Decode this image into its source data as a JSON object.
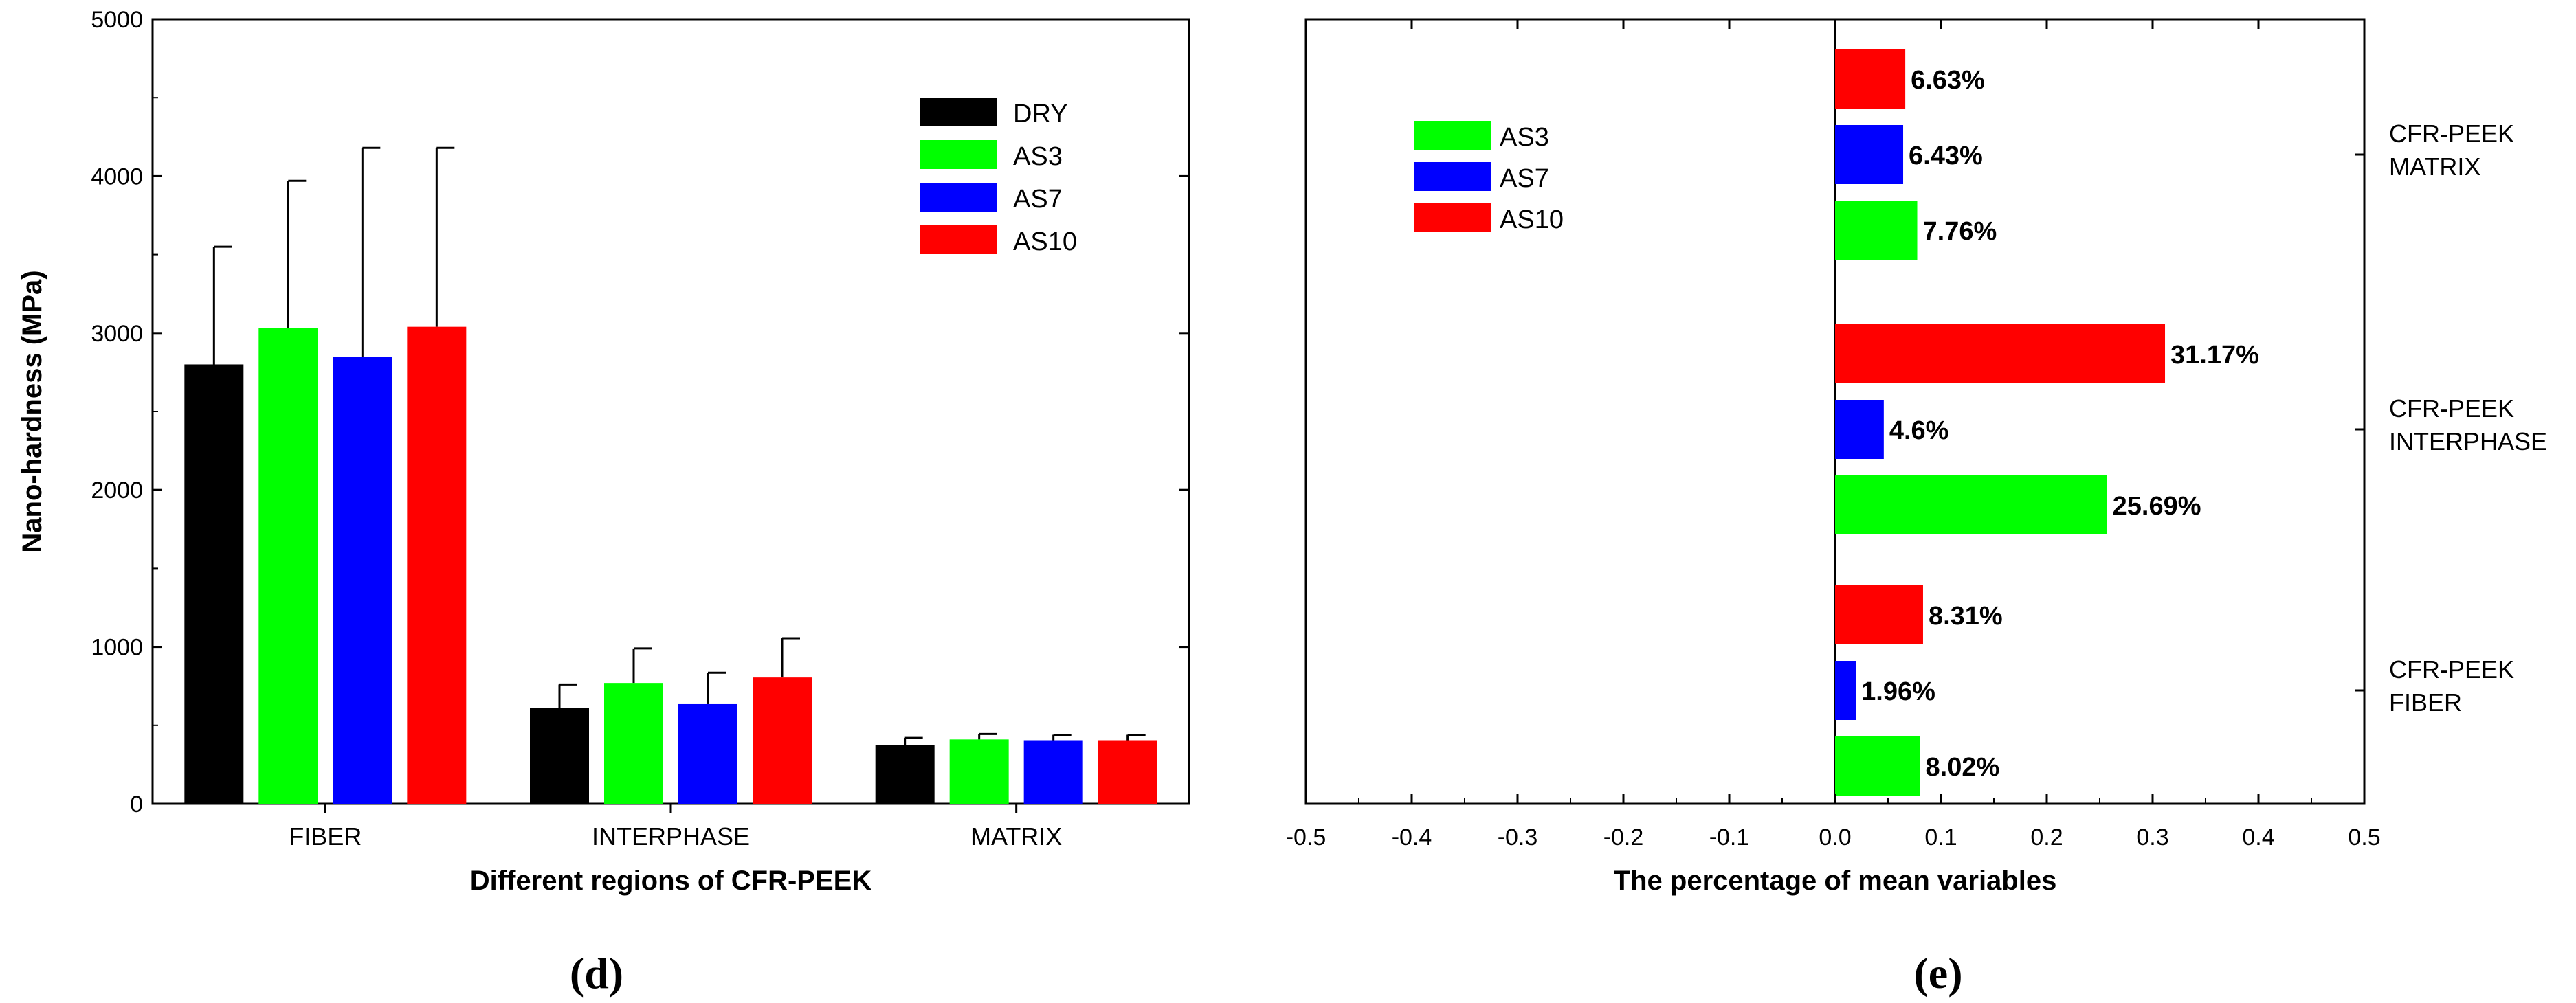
{
  "chart_data": [
    {
      "type": "bar",
      "panel_label": "d",
      "xlabel": "Different regions of CFR-PEEK",
      "ylabel": "Nano-hardness (MPa)",
      "categories": [
        "FIBER",
        "INTERPHASE",
        "MATRIX"
      ],
      "ylim": [
        0,
        5000
      ],
      "yticks": [
        "0",
        "1000",
        "2000",
        "3000",
        "4000",
        "5000"
      ],
      "legend_position": "top-right",
      "series": [
        {
          "name": "DRY",
          "color": "#000000",
          "values": [
            2800,
            610,
            375
          ],
          "errors": [
            750,
            150,
            45
          ]
        },
        {
          "name": "AS3",
          "color": "#00ff00",
          "values": [
            3030,
            770,
            410
          ],
          "errors": [
            940,
            220,
            35
          ]
        },
        {
          "name": "AS7",
          "color": "#0000ff",
          "values": [
            2850,
            635,
            405
          ],
          "errors": [
            1330,
            200,
            35
          ]
        },
        {
          "name": "AS10",
          "color": "#ff0000",
          "values": [
            3040,
            805,
            405
          ],
          "errors": [
            1140,
            250,
            35
          ]
        }
      ]
    },
    {
      "type": "bar",
      "orientation": "horizontal",
      "panel_label": "e",
      "xlabel": "The percentage of mean variables",
      "xlim": [
        -0.5,
        0.5
      ],
      "xticks": [
        "-0.5",
        "-0.4",
        "-0.3",
        "-0.2",
        "-0.1",
        "0.0",
        "0.1",
        "0.2",
        "0.3",
        "0.4",
        "0.5"
      ],
      "legend_position": "top-left",
      "groups": [
        {
          "label_line1": "CFR-PEEK",
          "label_line2": "FIBER",
          "values": {
            "AS3": 0.0802,
            "AS7": 0.0196,
            "AS10": 0.0831
          },
          "labels": {
            "AS3": "8.02%",
            "AS7": "1.96%",
            "AS10": "8.31%"
          }
        },
        {
          "label_line1": "CFR-PEEK",
          "label_line2": "INTERPHASE",
          "values": {
            "AS3": 0.2569,
            "AS7": 0.046,
            "AS10": 0.3117
          },
          "labels": {
            "AS3": "25.69%",
            "AS7": "4.6%",
            "AS10": "31.17%"
          }
        },
        {
          "label_line1": "CFR-PEEK",
          "label_line2": "MATRIX",
          "values": {
            "AS3": 0.0776,
            "AS7": 0.0643,
            "AS10": 0.0663
          },
          "labels": {
            "AS3": "7.76%",
            "AS7": "6.43%",
            "AS10": "6.63%"
          }
        }
      ],
      "series": [
        {
          "name": "AS3",
          "color": "#00ff00"
        },
        {
          "name": "AS7",
          "color": "#0000ff"
        },
        {
          "name": "AS10",
          "color": "#ff0000"
        }
      ]
    }
  ]
}
